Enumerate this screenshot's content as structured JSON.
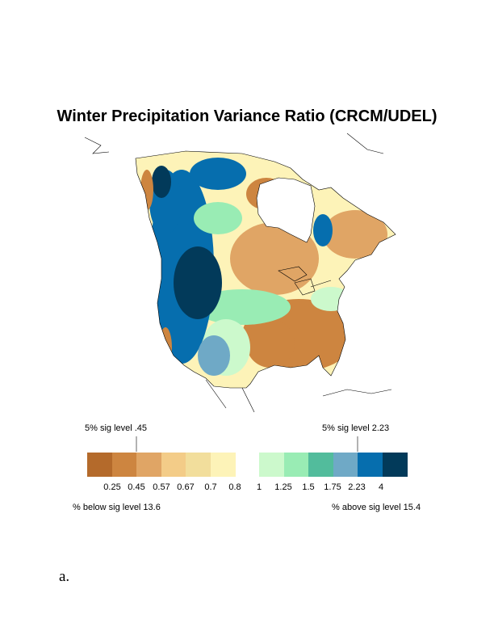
{
  "title": "Winter Precipitation Variance Ratio (CRCM/UDEL)",
  "panel_label": "a.",
  "legend": {
    "left_sig_label": "5% sig level .45",
    "right_sig_label": "5% sig level 2.23",
    "below_text": "% below sig level 13.6",
    "above_text": "% above sig level 15.4",
    "left_colors": [
      "#b46a2b",
      "#cd8540",
      "#e0a565",
      "#f3cc88",
      "#f2de9c",
      "#fdf3b8"
    ],
    "right_colors": [
      "#ccf9cc",
      "#99ecb4",
      "#52bc9c",
      "#6fa9c6",
      "#066eae",
      "#023a5a"
    ],
    "left_ticks": [
      "0.25",
      "0.45",
      "0.57",
      "0.67",
      "0.7",
      "0.8"
    ],
    "right_ticks": [
      "1",
      "1.25",
      "1.5",
      "1.75",
      "2.23",
      "4"
    ]
  }
}
